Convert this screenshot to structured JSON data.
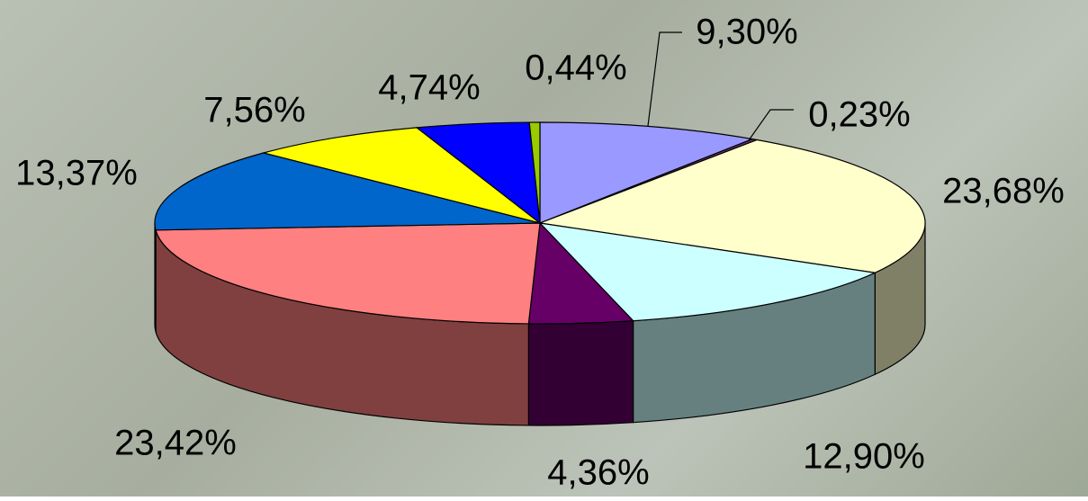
{
  "chart_data": {
    "type": "pie3d",
    "values": [
      9.3,
      0.23,
      23.68,
      12.9,
      4.36,
      23.42,
      13.37,
      7.56,
      4.74,
      0.44
    ],
    "value_labels": [
      "9,30%",
      "0,23%",
      "23,68%",
      "12,90%",
      "4,36%",
      "23,42%",
      "13,37%",
      "7,56%",
      "4,74%",
      "0,44%"
    ],
    "colors": [
      "#9999ff",
      "#663366",
      "#ffffcc",
      "#ccffff",
      "#660066",
      "#ff8080",
      "#0066cc",
      "#ffff00",
      "#0000ff",
      "#99cc00"
    ]
  }
}
